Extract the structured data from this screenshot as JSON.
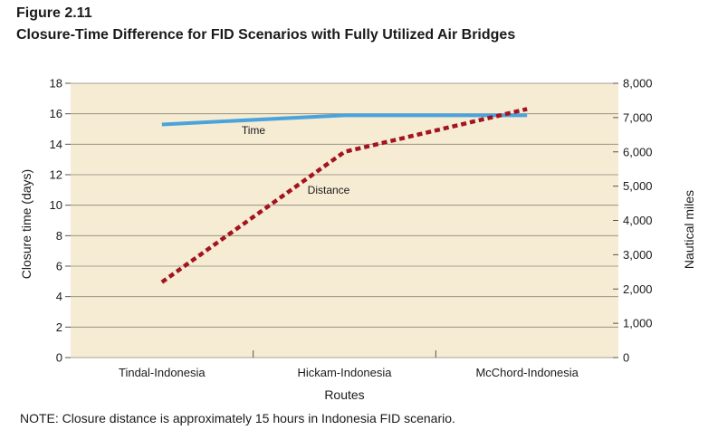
{
  "figure": {
    "label": "Figure 2.11",
    "title": "Closure-Time Difference for FID Scenarios with Fully Utilized Air Bridges",
    "note": "NOTE: Closure distance is approximately 15 hours in Indonesia FID scenario."
  },
  "chart_data": {
    "type": "line",
    "categories": [
      "Tindal-Indonesia",
      "Hickam-Indonesia",
      "McChord-Indonesia"
    ],
    "xlabel": "Routes",
    "ylabel_left": "Closure time (days)",
    "ylabel_right": "Nautical miles",
    "ylim_left": [
      0,
      18
    ],
    "yticks_left": [
      "0",
      "2",
      "4",
      "6",
      "8",
      "10",
      "12",
      "14",
      "16",
      "18"
    ],
    "ylim_right": [
      0,
      8000
    ],
    "yticks_right": [
      "0",
      "1,000",
      "2,000",
      "3,000",
      "4,000",
      "5,000",
      "6,000",
      "7,000",
      "8,000"
    ],
    "grid": true,
    "background_color": "#f6ecd4",
    "series": [
      {
        "name": "Time",
        "axis": "left",
        "values": [
          15.3,
          15.9,
          15.9
        ],
        "color": "#4aa3dc",
        "style": "solid"
      },
      {
        "name": "Distance",
        "axis": "right",
        "values": [
          2200,
          6000,
          7250
        ],
        "color": "#a3141f",
        "style": "dashed"
      }
    ]
  }
}
